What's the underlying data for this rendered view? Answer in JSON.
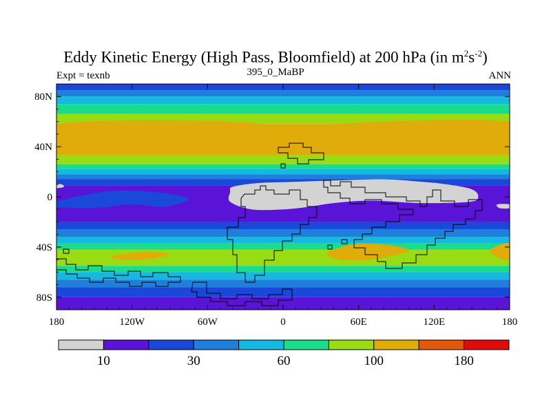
{
  "chart_data": {
    "type": "contour-map",
    "title": "Eddy Kinetic Energy (High Pass, Bloomfield) at 200 hPa (in m",
    "title_sup1": "2",
    "title_mid": "s",
    "title_sup2": "-2",
    "title_end": ")",
    "subtitle_left": "Expt = texnb",
    "subtitle_center": "395_0_MaBP",
    "subtitle_right": "ANN",
    "xlim": [
      -180,
      180
    ],
    "ylim": [
      -90,
      90
    ],
    "x_ticks": [
      {
        "value": -180,
        "label": "180"
      },
      {
        "value": -120,
        "label": "120W"
      },
      {
        "value": -60,
        "label": "60W"
      },
      {
        "value": 0,
        "label": "0"
      },
      {
        "value": 60,
        "label": "60E"
      },
      {
        "value": 120,
        "label": "120E"
      },
      {
        "value": 180,
        "label": "180"
      }
    ],
    "y_ticks": [
      {
        "value": 80,
        "label": "80N"
      },
      {
        "value": 40,
        "label": "40N"
      },
      {
        "value": 0,
        "label": "0"
      },
      {
        "value": -40,
        "label": "40S"
      },
      {
        "value": -80,
        "label": "80S"
      }
    ],
    "zonal_bands": [
      {
        "lat_min": 85,
        "lat_max": 90,
        "level": 2
      },
      {
        "lat_min": 80,
        "lat_max": 85,
        "level": 3
      },
      {
        "lat_min": 74,
        "lat_max": 80,
        "level": 4
      },
      {
        "lat_min": 66,
        "lat_max": 74,
        "level": 5
      },
      {
        "lat_min": 58,
        "lat_max": 66,
        "level": 6
      },
      {
        "lat_min": 33,
        "lat_max": 58,
        "level": 7
      },
      {
        "lat_min": 26,
        "lat_max": 33,
        "level": 6
      },
      {
        "lat_min": 22,
        "lat_max": 26,
        "level": 5
      },
      {
        "lat_min": 18,
        "lat_max": 22,
        "level": 4
      },
      {
        "lat_min": 14,
        "lat_max": 18,
        "level": 3
      },
      {
        "lat_min": 9,
        "lat_max": 14,
        "level": 2
      },
      {
        "lat_min": -20,
        "lat_max": 9,
        "level": 1
      },
      {
        "lat_min": -26,
        "lat_max": -20,
        "level": 2
      },
      {
        "lat_min": -32,
        "lat_max": -26,
        "level": 3
      },
      {
        "lat_min": -37,
        "lat_max": -32,
        "level": 4
      },
      {
        "lat_min": -42,
        "lat_max": -37,
        "level": 5
      },
      {
        "lat_min": -55,
        "lat_max": -42,
        "level": 6
      },
      {
        "lat_min": -60,
        "lat_max": -55,
        "level": 5
      },
      {
        "lat_min": -66,
        "lat_max": -60,
        "level": 4
      },
      {
        "lat_min": -72,
        "lat_max": -66,
        "level": 3
      },
      {
        "lat_min": -80,
        "lat_max": -72,
        "level": 2
      },
      {
        "lat_min": -90,
        "lat_max": -80,
        "level": 1
      }
    ],
    "features": [
      {
        "name": "tropical-low-region",
        "level": 0,
        "lonlat": [
          [
            -40,
            8
          ],
          [
            -20,
            11
          ],
          [
            10,
            12
          ],
          [
            40,
            13
          ],
          [
            80,
            14
          ],
          [
            110,
            12
          ],
          [
            130,
            10
          ],
          [
            150,
            6
          ],
          [
            155,
            0
          ],
          [
            148,
            -4
          ],
          [
            110,
            -5
          ],
          [
            70,
            -3
          ],
          [
            40,
            -5
          ],
          [
            20,
            -8
          ],
          [
            0,
            -10
          ],
          [
            -25,
            -10
          ],
          [
            -42,
            -4
          ],
          [
            -42,
            4
          ]
        ]
      },
      {
        "name": "central-pacific-low-patch",
        "level": 0,
        "lonlat": [
          [
            -180,
            10
          ],
          [
            -176,
            10
          ],
          [
            -174,
            8
          ],
          [
            -180,
            7
          ]
        ]
      },
      {
        "name": "east-pacific-low-patch",
        "level": 0,
        "lonlat": [
          [
            170,
            -6
          ],
          [
            180,
            -6
          ],
          [
            180,
            -9
          ],
          [
            172,
            -9
          ]
        ]
      },
      {
        "name": "north-pacific-jet-max",
        "level": 7,
        "lonlat": [
          [
            -180,
            58
          ],
          [
            -40,
            60
          ],
          [
            -5,
            52
          ],
          [
            -8,
            42
          ],
          [
            -40,
            36
          ],
          [
            -180,
            36
          ]
        ]
      },
      {
        "name": "north-atlantic-jet-max",
        "level": 7,
        "lonlat": [
          [
            40,
            58
          ],
          [
            180,
            60
          ],
          [
            180,
            36
          ],
          [
            60,
            36
          ],
          [
            35,
            42
          ],
          [
            35,
            52
          ]
        ]
      },
      {
        "name": "equatorial-dip-west",
        "level": 2,
        "lonlat": [
          [
            -180,
            -4
          ],
          [
            -155,
            2
          ],
          [
            -130,
            5
          ],
          [
            -95,
            3
          ],
          [
            -75,
            -2
          ],
          [
            -95,
            -8
          ],
          [
            -120,
            -6
          ],
          [
            -150,
            -9
          ],
          [
            -180,
            -8
          ]
        ]
      },
      {
        "name": "south-atlantic-max",
        "level": 7,
        "lonlat": [
          [
            -135,
            -47
          ],
          [
            -110,
            -44
          ],
          [
            -90,
            -46
          ],
          [
            -110,
            -50
          ],
          [
            -130,
            -50
          ]
        ]
      },
      {
        "name": "south-indian-max",
        "level": 7,
        "lonlat": [
          [
            35,
            -45
          ],
          [
            55,
            -38
          ],
          [
            80,
            -38
          ],
          [
            100,
            -43
          ],
          [
            70,
            -50
          ],
          [
            45,
            -50
          ]
        ]
      },
      {
        "name": "south-pacific-max",
        "level": 7,
        "lonlat": [
          [
            165,
            -42
          ],
          [
            180,
            -37
          ],
          [
            180,
            -50
          ],
          [
            170,
            -48
          ]
        ]
      }
    ],
    "legend": {
      "colors": [
        "#d3d3d3",
        "#5a14d8",
        "#1a48d8",
        "#1e7fdc",
        "#14b8e0",
        "#1adc8c",
        "#9adc14",
        "#e0ac0a",
        "#e05a0a",
        "#e00a0a"
      ],
      "labels": [
        "10",
        "30",
        "60",
        "100",
        "180"
      ]
    },
    "coastline_outline": "stepped continental boundaries (black)"
  }
}
